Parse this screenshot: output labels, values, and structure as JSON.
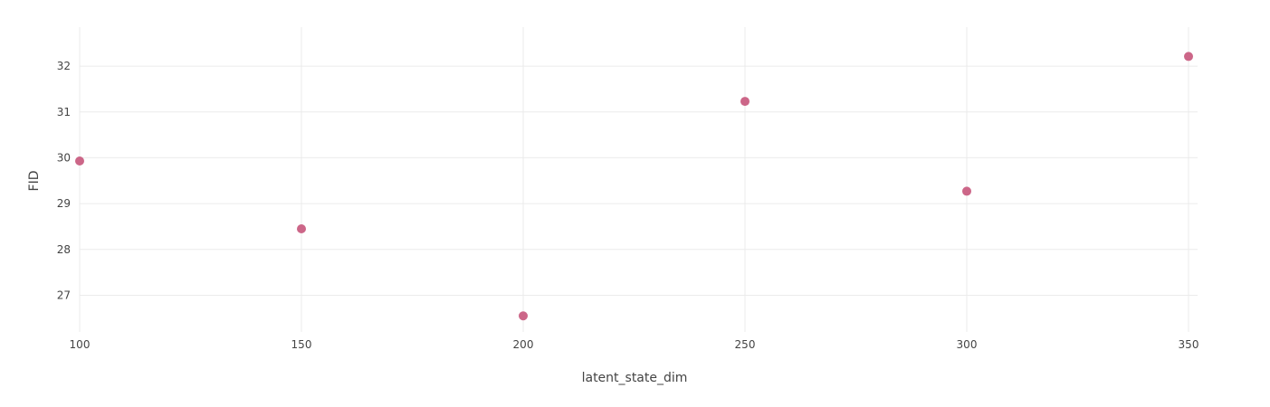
{
  "chart_data": {
    "type": "scatter",
    "xlabel": "latent_state_dim",
    "ylabel": "FID",
    "xlim": [
      100,
      350
    ],
    "ylim": [
      26.2,
      32.85
    ],
    "x_ticks": [
      100,
      150,
      200,
      250,
      300,
      350
    ],
    "y_ticks": [
      27,
      28,
      29,
      30,
      31,
      32
    ],
    "grid": true,
    "marker_color": "#cc6688",
    "series": [
      {
        "x": [
          100,
          150,
          200,
          250,
          300,
          350
        ],
        "y": [
          29.93,
          28.45,
          26.55,
          31.23,
          29.27,
          32.21
        ]
      }
    ]
  }
}
